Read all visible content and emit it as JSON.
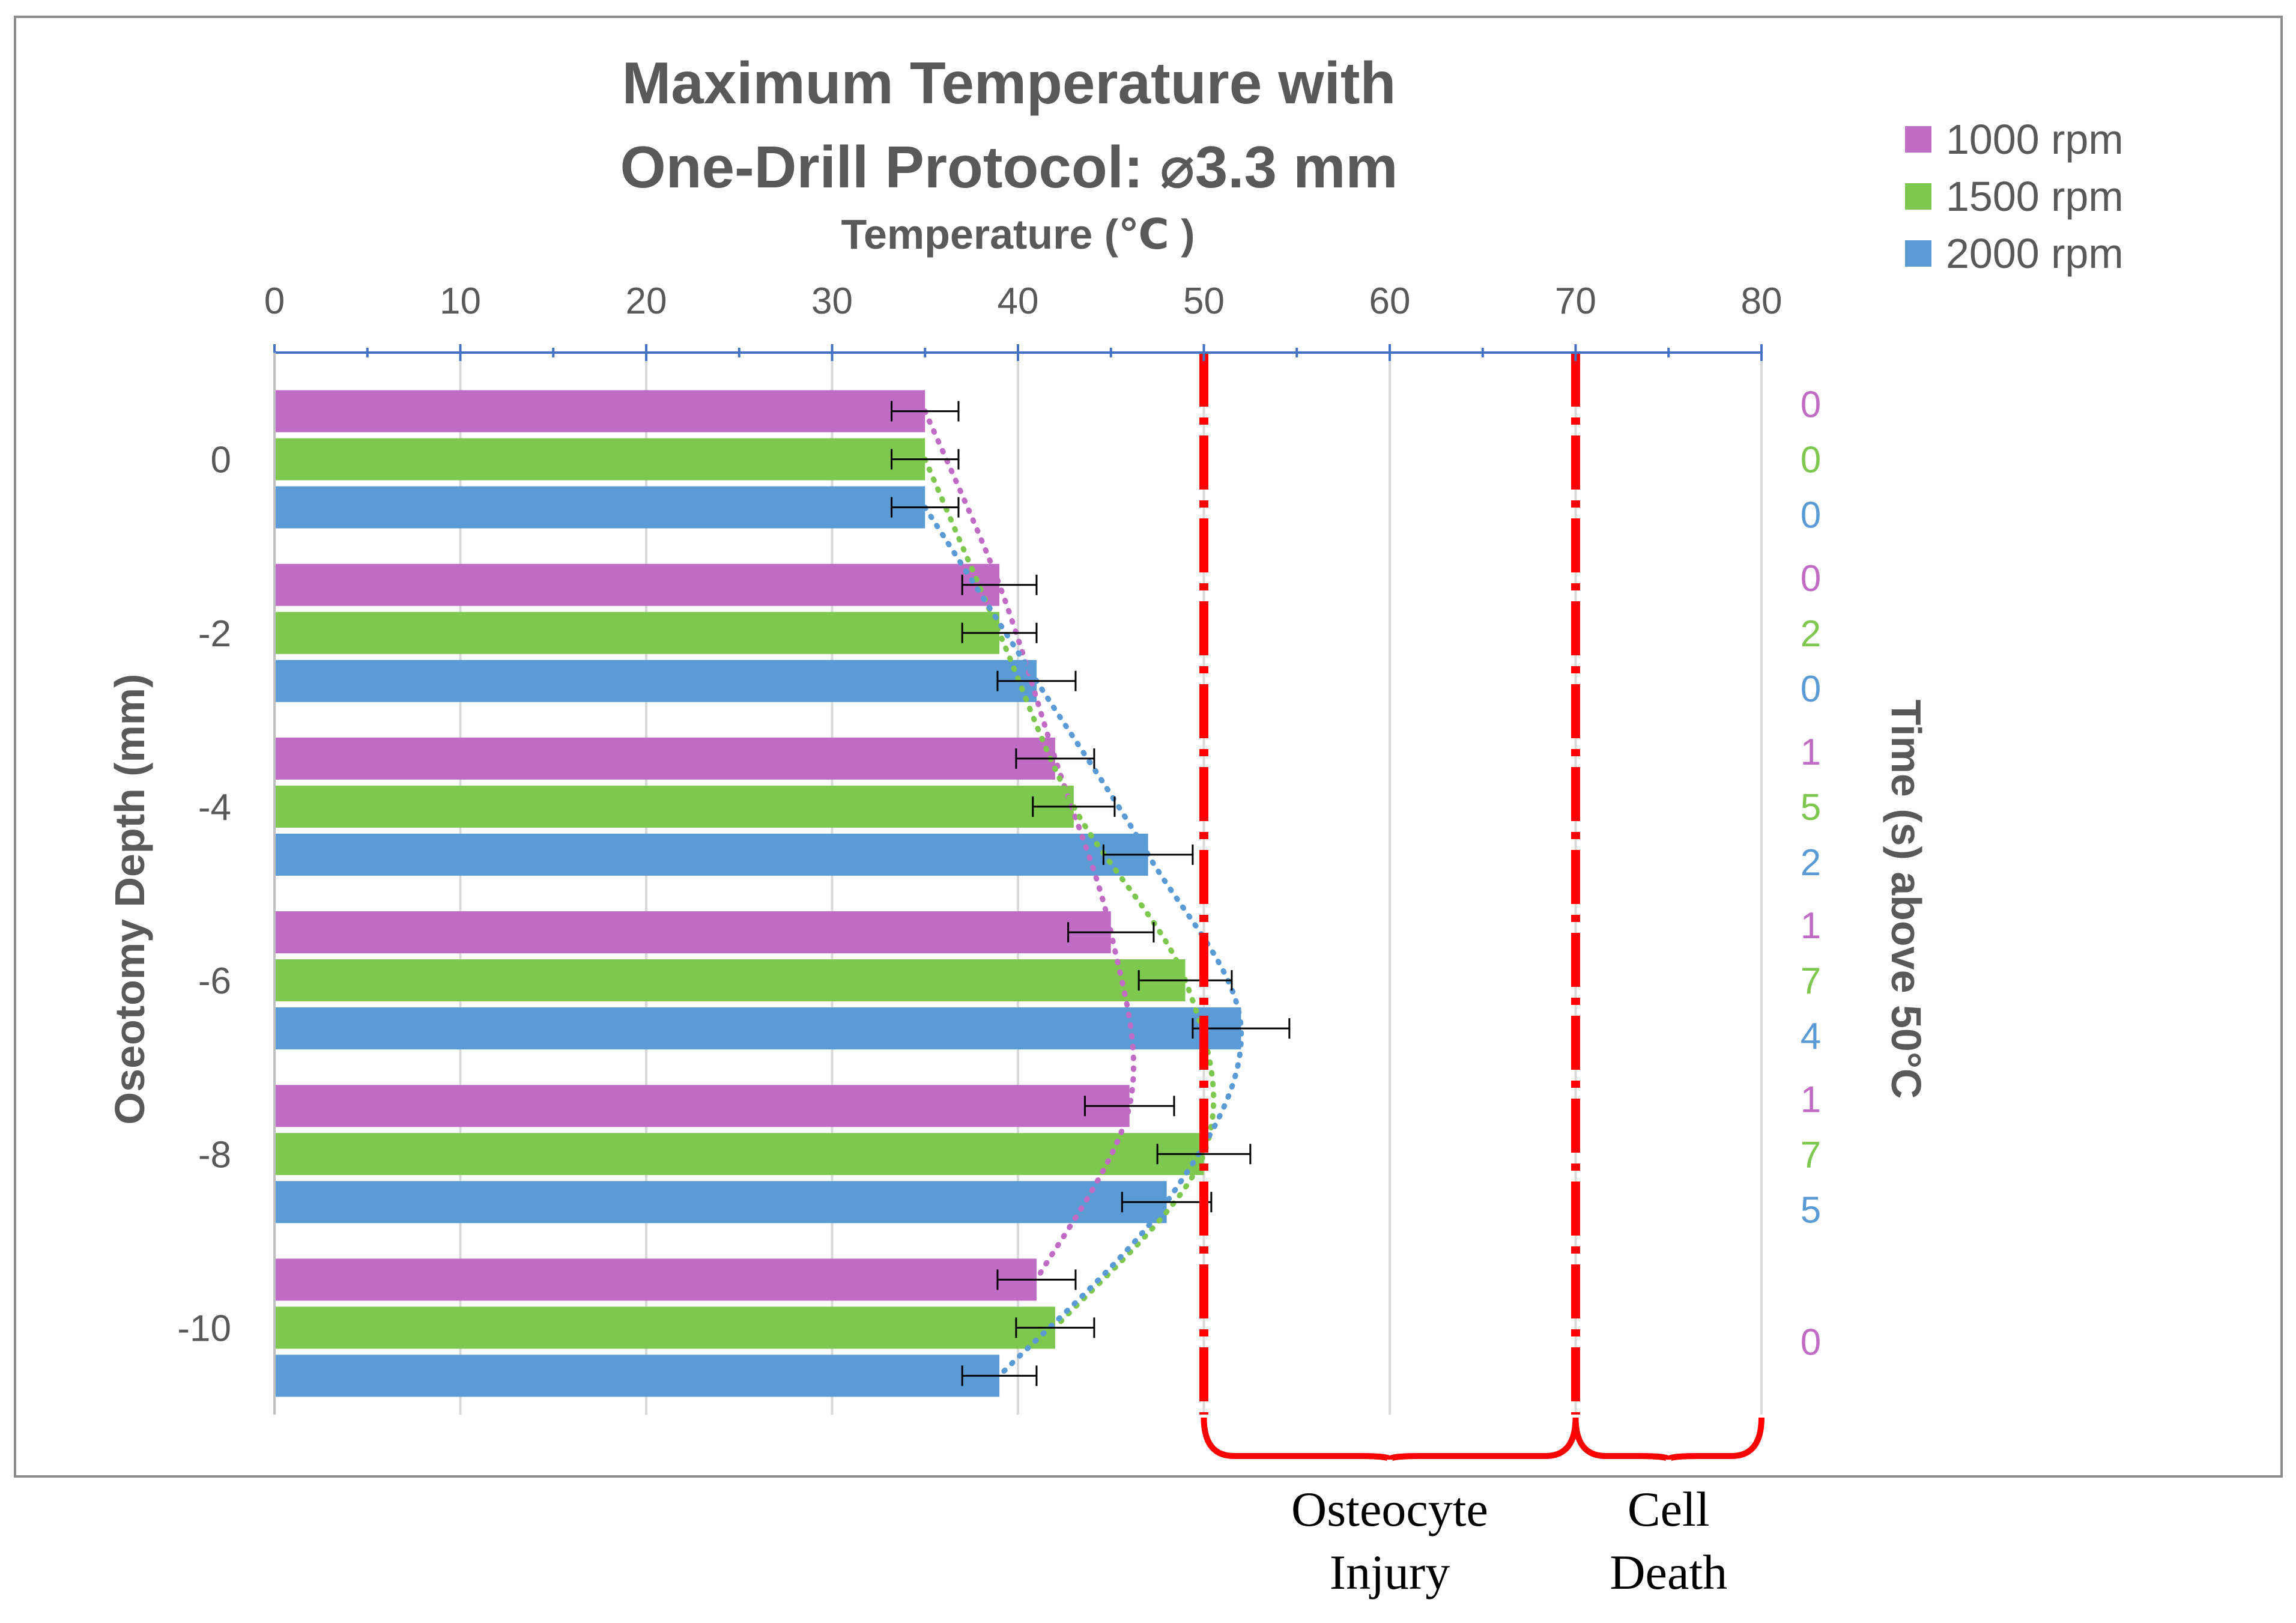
{
  "chart_data": {
    "type": "bar",
    "orientation": "horizontal",
    "title_line1": "Maximum Temperature with",
    "title_line2": "One-Drill Protocol: ⌀3.3 mm",
    "xlabel": "Temperature (℃ )",
    "ylabel": "Oseotomy Depth (mm)",
    "right_label": "Time (s) above 50°C",
    "xlim": [
      0,
      80
    ],
    "x_ticks": [
      "0",
      "10",
      "20",
      "30",
      "40",
      "50",
      "60",
      "70",
      "80"
    ],
    "x_tick_values": [
      0,
      10,
      20,
      30,
      40,
      50,
      60,
      70,
      80
    ],
    "categories": [
      "0",
      "-2",
      "-4",
      "-6",
      "-8",
      "-10"
    ],
    "grid": "vertical",
    "legend_position": "top-right",
    "series": [
      {
        "name": "1000 rpm",
        "color": "#c06bc4",
        "values": [
          35,
          39,
          42,
          45,
          46,
          41
        ],
        "errors": [
          1.8,
          2.0,
          2.1,
          2.3,
          2.4,
          2.1
        ],
        "time_labels": [
          "0",
          "0",
          "1",
          "1",
          "1",
          "0"
        ]
      },
      {
        "name": "1500 rpm",
        "color": "#7ec850",
        "values": [
          35,
          39,
          43,
          49,
          50,
          42
        ],
        "errors": [
          1.8,
          2.0,
          2.2,
          2.5,
          2.5,
          2.1
        ],
        "time_labels": [
          "0",
          "2",
          "5",
          "7",
          "7",
          ""
        ]
      },
      {
        "name": "2000 rpm",
        "color": "#5b9bd5",
        "values": [
          35,
          41,
          47,
          52,
          48,
          39
        ],
        "errors": [
          1.8,
          2.1,
          2.4,
          2.6,
          2.4,
          2.0
        ],
        "time_labels": [
          "0",
          "0",
          "2",
          "4",
          "5",
          ""
        ]
      }
    ],
    "reference_lines": [
      {
        "value": 50,
        "color": "#ff0000"
      },
      {
        "value": 70,
        "color": "#ff0000"
      }
    ],
    "zones": [
      {
        "from": 50,
        "to": 70,
        "label_line1": "Osteocyte",
        "label_line2": "Injury"
      },
      {
        "from": 70,
        "to": 80,
        "label_line1": "Cell",
        "label_line2": "Death"
      }
    ]
  }
}
